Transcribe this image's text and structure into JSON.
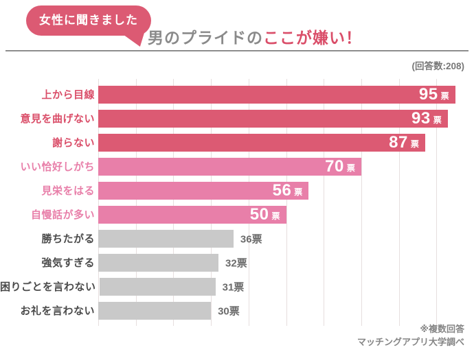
{
  "badge": {
    "label": "女性に聞きました"
  },
  "title": {
    "gray_part": "男のプライドの",
    "accent_part": "ここが嫌い！"
  },
  "response_count": "(回答数:208)",
  "unit": "票",
  "chart_data": {
    "type": "bar",
    "orientation": "horizontal",
    "title": "男のプライドのここが嫌い！",
    "subtitle": "女性に聞きました",
    "categories": [
      "上から目線",
      "意見を曲げない",
      "謝らない",
      "いい恰好しがち",
      "見栄をはる",
      "自慢話が多い",
      "勝ちたがる",
      "強気すぎる",
      "困りごとを言わない",
      "お礼を言わない"
    ],
    "values": [
      95,
      93,
      87,
      70,
      56,
      50,
      36,
      32,
      31,
      30
    ],
    "unit": "票",
    "xlim": [
      0,
      100
    ],
    "grid": true,
    "gridline_step": 10,
    "groups": [
      "dark",
      "dark",
      "dark",
      "pink",
      "pink",
      "pink",
      "gray",
      "gray",
      "gray",
      "gray"
    ],
    "value_label_position": {
      "dark": "inside",
      "pink": "inside",
      "gray": "outside"
    }
  },
  "colors": {
    "rose": "#dc5a73",
    "rose_text": "#da4e69",
    "pink": "#e87fa9",
    "gray_bar": "#c9c9c9",
    "grid": "#e6dede"
  },
  "footnotes": [
    "※複数回答",
    "マッチングアプリ大学調べ"
  ]
}
